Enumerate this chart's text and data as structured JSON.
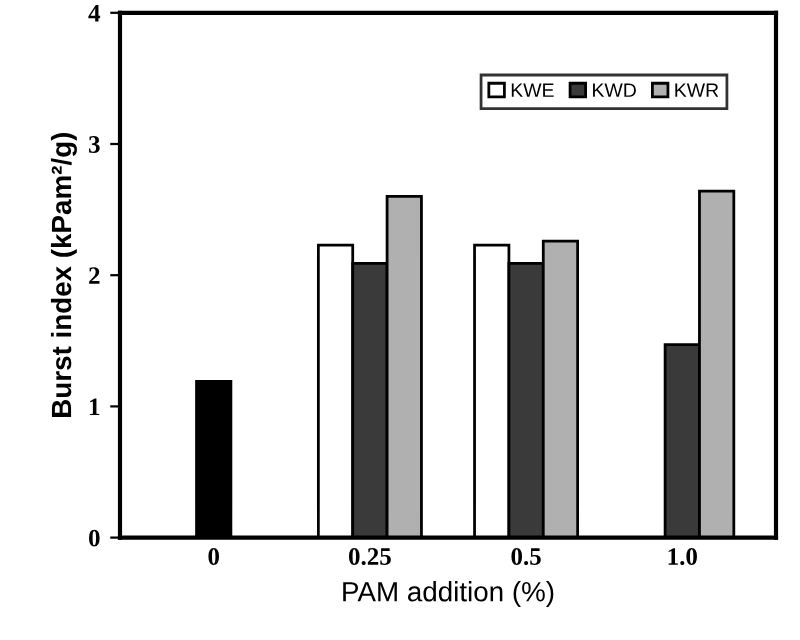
{
  "chart_data": {
    "type": "bar",
    "xlabel": "PAM addition (%)",
    "ylabel": "Burst index (kPam²/g)",
    "categories": [
      "0",
      "0.25",
      "0.5",
      "1.0"
    ],
    "series": [
      {
        "color": "#000000",
        "values": [
          1.19,
          null,
          null,
          null
        ]
      },
      {
        "name": "KWE",
        "color": "#ffffff",
        "values": [
          null,
          2.23,
          2.23,
          null
        ]
      },
      {
        "name": "KWD",
        "color": "#3a3a3a",
        "values": [
          null,
          2.09,
          2.09,
          1.47
        ]
      },
      {
        "name": "KWR",
        "color": "#b0b0b0",
        "values": [
          null,
          2.6,
          2.26,
          2.64
        ]
      }
    ],
    "ylim": [
      0,
      4
    ],
    "yticks": [
      0,
      1,
      2,
      3,
      4
    ],
    "grid": false,
    "legend": "top right"
  }
}
